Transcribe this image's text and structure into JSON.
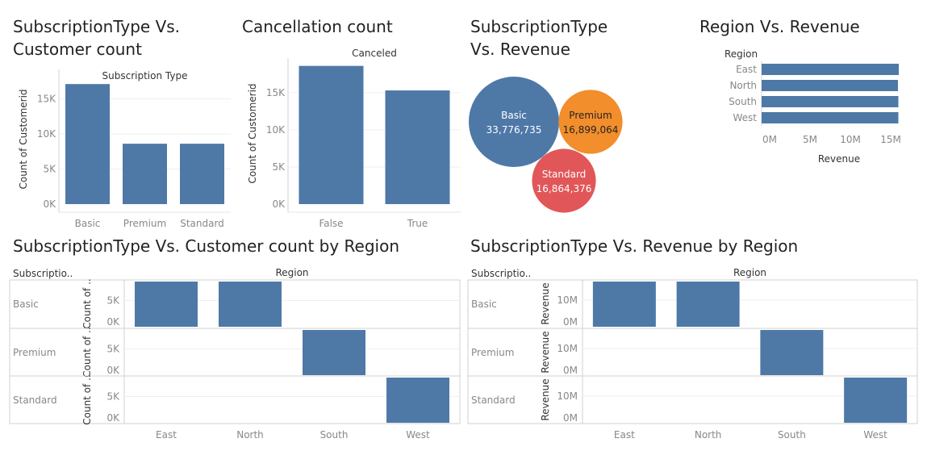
{
  "titles": {
    "t1_line1": "SubscriptionType Vs.",
    "t1_line2": "Customer count",
    "t2": "Cancellation count",
    "t3_line1": "SubscriptionType",
    "t3_line2": "Vs. Revenue",
    "t4": "Region Vs. Revenue",
    "t5": "SubscriptionType Vs. Customer count by Region",
    "t6": "SubscriptionType Vs. Revenue by Region"
  },
  "colors": {
    "bar": "#4e79a7",
    "basic": "#4e79a7",
    "premium": "#f28e2b",
    "standard": "#e15759",
    "axis_text": "#888888",
    "grid": "#efefef",
    "border": "#d0d0d0"
  },
  "chart_data": [
    {
      "id": "sub_vs_count",
      "type": "bar",
      "header": "Subscription Type",
      "ylabel": "Count of Customerid",
      "categories": [
        "Basic",
        "Premium",
        "Standard"
      ],
      "values": [
        17100,
        8600,
        8600
      ],
      "ylim": [
        0,
        18500
      ],
      "yticks": [
        0,
        5000,
        10000,
        15000
      ],
      "ytick_labels": [
        "0K",
        "5K",
        "10K",
        "15K"
      ],
      "grid": true
    },
    {
      "id": "cancellation",
      "type": "bar",
      "header": "Canceled",
      "ylabel": "Count of Customerid",
      "categories": [
        "False",
        "True"
      ],
      "values": [
        18600,
        15300
      ],
      "ylim": [
        0,
        19000
      ],
      "yticks": [
        0,
        5000,
        10000,
        15000
      ],
      "ytick_labels": [
        "0K",
        "5K",
        "10K",
        "15K"
      ],
      "grid": true
    },
    {
      "id": "sub_vs_revenue",
      "type": "bubble",
      "items": [
        {
          "label": "Basic",
          "value_text": "33,776,735",
          "value": 33776735,
          "color": "#4e79a7"
        },
        {
          "label": "Premium",
          "value_text": "16,899,064",
          "value": 16899064,
          "color": "#f28e2b"
        },
        {
          "label": "Standard",
          "value_text": "16,864,376",
          "value": 16864376,
          "color": "#e15759"
        }
      ]
    },
    {
      "id": "region_vs_revenue",
      "type": "bar",
      "orientation": "horizontal",
      "header": "Region",
      "xlabel": "Revenue",
      "categories": [
        "East",
        "North",
        "South",
        "West"
      ],
      "values": [
        17000000,
        16900000,
        16950000,
        16950000
      ],
      "xlim": [
        0,
        18500000
      ],
      "xticks": [
        0,
        5000000,
        10000000,
        15000000
      ],
      "xtick_labels": [
        "0M",
        "5M",
        "10M",
        "15M"
      ]
    },
    {
      "id": "count_by_region",
      "type": "bar",
      "row_header": "Subscriptio..",
      "col_header": "Region",
      "ylabel": "Count of ..",
      "rows": [
        "Basic",
        "Premium",
        "Standard"
      ],
      "columns": [
        "East",
        "North",
        "South",
        "West"
      ],
      "values": [
        [
          8600,
          8600,
          0,
          0
        ],
        [
          0,
          0,
          8600,
          0
        ],
        [
          0,
          0,
          0,
          8600
        ]
      ],
      "ylim": [
        0,
        8600
      ],
      "yticks": [
        0,
        5000
      ],
      "ytick_labels": [
        "0K",
        "5K"
      ]
    },
    {
      "id": "revenue_by_region",
      "type": "bar",
      "row_header": "Subscriptio..",
      "col_header": "Region",
      "ylabel": "Revenue",
      "rows": [
        "Basic",
        "Premium",
        "Standard"
      ],
      "columns": [
        "East",
        "North",
        "South",
        "West"
      ],
      "values": [
        [
          16900000,
          16900000,
          0,
          0
        ],
        [
          0,
          0,
          16900000,
          0
        ],
        [
          0,
          0,
          0,
          16900000
        ]
      ],
      "ylim": [
        0,
        16900000
      ],
      "yticks": [
        0,
        10000000
      ],
      "ytick_labels": [
        "0M",
        "10M"
      ]
    }
  ]
}
